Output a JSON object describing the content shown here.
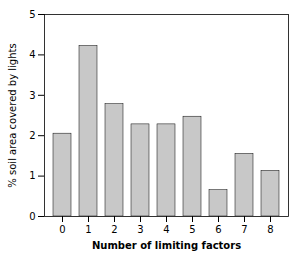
{
  "chart_data": {
    "type": "bar",
    "categories": [
      0,
      1,
      2,
      3,
      4,
      5,
      6,
      7,
      8
    ],
    "values": [
      2.05,
      4.22,
      2.78,
      2.28,
      2.28,
      2.47,
      0.65,
      1.55,
      1.13
    ],
    "color": "#c8c8c8",
    "xlabel": "Number of limiting factors",
    "ylabel": "% soil area covered by lights",
    "ylim": [
      0,
      5
    ],
    "yticks": [
      0,
      1,
      2,
      3,
      4,
      5
    ],
    "grid": false
  }
}
